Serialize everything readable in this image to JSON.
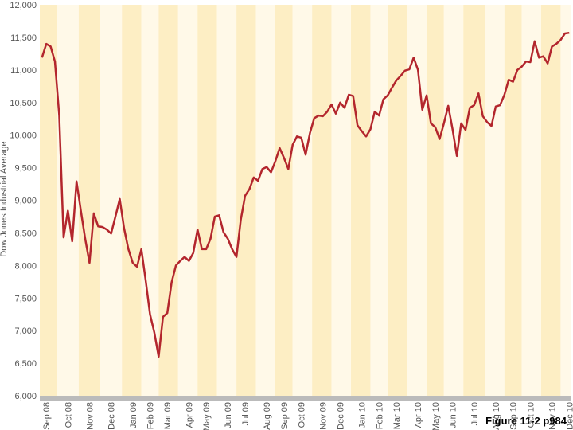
{
  "chart_data": {
    "type": "line",
    "y_label": "Dow Jones Industrial Average",
    "annotation": "Figure 11-2 p984",
    "categories": [
      null,
      "Sep 08",
      null,
      null,
      null,
      null,
      "Oct 08",
      null,
      null,
      null,
      null,
      "Nov 08",
      null,
      null,
      null,
      null,
      "Dec 08",
      null,
      null,
      null,
      null,
      "Jan 09",
      null,
      null,
      null,
      "Feb 09",
      null,
      null,
      null,
      "Mar 09",
      null,
      null,
      null,
      null,
      "Apr 09",
      null,
      null,
      null,
      "May 09",
      null,
      null,
      null,
      null,
      "Jun 09",
      null,
      null,
      null,
      "Jul 09",
      null,
      null,
      null,
      null,
      "Aug 09",
      null,
      null,
      null,
      "Sep 09",
      null,
      null,
      null,
      "Oct 09",
      null,
      null,
      null,
      null,
      "Nov 09",
      null,
      null,
      null,
      "Dec 09",
      null,
      null,
      null,
      null,
      "Jan 10",
      null,
      null,
      null,
      "Feb 10",
      null,
      null,
      null,
      "Mar 10",
      null,
      null,
      null,
      null,
      "Apr 10",
      null,
      null,
      null,
      "May 10",
      null,
      null,
      null,
      "Jun 10",
      null,
      null,
      null,
      null,
      "Jul 10",
      null,
      null,
      null,
      null,
      "Aug 10",
      null,
      null,
      null,
      "Sep 10",
      null,
      null,
      null,
      "Oct 10",
      null,
      null,
      null,
      null,
      "Nov 10",
      null,
      null,
      null,
      "Dec 10"
    ],
    "series": [
      {
        "name": "Dow Jones Industrial Average",
        "color": "#b3262d",
        "values": [
          11190,
          11400,
          11360,
          11130,
          10300,
          8430,
          8840,
          8370,
          9290,
          8840,
          8410,
          8040,
          8800,
          8600,
          8590,
          8550,
          8490,
          8750,
          9020,
          8570,
          8250,
          8040,
          7980,
          8250,
          7770,
          7250,
          6970,
          6600,
          7210,
          7270,
          7740,
          8000,
          8070,
          8130,
          8070,
          8190,
          8550,
          8250,
          8250,
          8410,
          8750,
          8770,
          8510,
          8410,
          8250,
          8130,
          8700,
          9070,
          9170,
          9350,
          9300,
          9480,
          9510,
          9430,
          9600,
          9800,
          9650,
          9480,
          9850,
          9980,
          9960,
          9700,
          10030,
          10260,
          10300,
          10290,
          10360,
          10470,
          10330,
          10500,
          10420,
          10620,
          10600,
          10150,
          10060,
          9980,
          10090,
          10360,
          10300,
          10550,
          10610,
          10730,
          10840,
          10910,
          10990,
          11010,
          11190,
          11000,
          10390,
          10610,
          10180,
          10120,
          9940,
          10180,
          10450,
          10090,
          9680,
          10180,
          10080,
          10420,
          10460,
          10640,
          10290,
          10200,
          10140,
          10440,
          10460,
          10620,
          10850,
          10820,
          11000,
          11050,
          11130,
          11120,
          11440,
          11190,
          11210,
          11100,
          11360,
          11400,
          11460,
          11560,
          11570
        ]
      }
    ],
    "ylim": [
      6000,
      12000
    ],
    "yticks": [
      {
        "value": 6000,
        "label": "6,000"
      },
      {
        "value": 6500,
        "label": "6,500"
      },
      {
        "value": 7000,
        "label": "7,000"
      },
      {
        "value": 7500,
        "label": "7,500"
      },
      {
        "value": 8000,
        "label": "8,000"
      },
      {
        "value": 8500,
        "label": "8,500"
      },
      {
        "value": 9000,
        "label": "9,000"
      },
      {
        "value": 9500,
        "label": "9,500"
      },
      {
        "value": 10000,
        "label": "10,000"
      },
      {
        "value": 10500,
        "label": "10,500"
      },
      {
        "value": 11000,
        "label": "11,000"
      },
      {
        "value": 11500,
        "label": "11,500"
      },
      {
        "value": 12000,
        "label": "12,000"
      }
    ],
    "grid": false,
    "band_colors": [
      "#fdeec4",
      "#fff9e8"
    ]
  }
}
